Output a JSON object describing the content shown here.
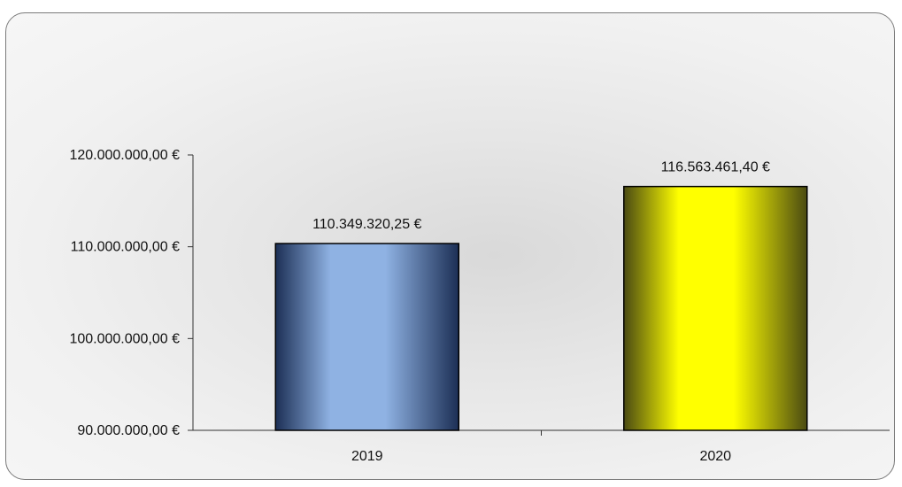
{
  "chart_data": {
    "type": "bar",
    "title": "",
    "xlabel": "",
    "ylabel": "",
    "categories": [
      "2019",
      "2020"
    ],
    "values": [
      110349320.25,
      116563461.4
    ],
    "data_labels": [
      "110.349.320,25  €",
      "116.563.461,40  €"
    ],
    "ylim": [
      90000000,
      120000000
    ],
    "yticks": [
      90000000,
      100000000,
      110000000,
      120000000
    ],
    "ytick_labels": [
      "90.000.000,00  €",
      "100.000.000,00  €",
      "110.000.000,00  €",
      "120.000.000,00  €"
    ],
    "grid": false,
    "legend": "none",
    "colors": {
      "2019": {
        "edge": "#1c2f55",
        "center": "#8fb2e3"
      },
      "2020": {
        "edge": "#4a4a12",
        "center": "#ffff00"
      }
    }
  }
}
